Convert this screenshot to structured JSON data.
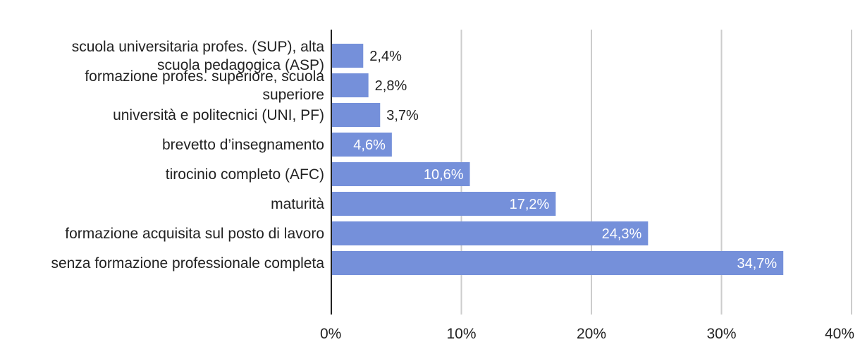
{
  "chart_data": {
    "type": "bar",
    "orientation": "horizontal",
    "categories": [
      [
        "scuola universitaria profes. (SUP), alta",
        "scuola pedagogica (ASP)"
      ],
      [
        "formazione profes. superiore, scuola",
        "superiore"
      ],
      [
        "università e politecnici (UNI, PF)"
      ],
      [
        "brevetto d’insegnamento"
      ],
      [
        "tirocinio completo (AFC)"
      ],
      [
        "maturità"
      ],
      [
        "formazione acquisita sul posto di lavoro"
      ],
      [
        "senza formazione professionale completa"
      ]
    ],
    "values": [
      2.4,
      2.8,
      3.7,
      4.6,
      10.6,
      17.2,
      24.3,
      34.7
    ],
    "value_labels": [
      "2,4%",
      "2,8%",
      "3,7%",
      "4,6%",
      "10,6%",
      "17,2%",
      "24,3%",
      "34,7%"
    ],
    "xlim": [
      0,
      40
    ],
    "xticks": [
      0,
      10,
      20,
      30,
      40
    ],
    "xtick_labels": [
      "0%",
      "10%",
      "20%",
      "30%",
      "40%"
    ],
    "grid": "vertical",
    "title": "",
    "xlabel": "",
    "ylabel": "",
    "colors": {
      "bar": "#7590da",
      "grid": "#cccccc",
      "axis": "#222222",
      "label_inside": "#ffffff",
      "label_outside": "#222222"
    }
  }
}
